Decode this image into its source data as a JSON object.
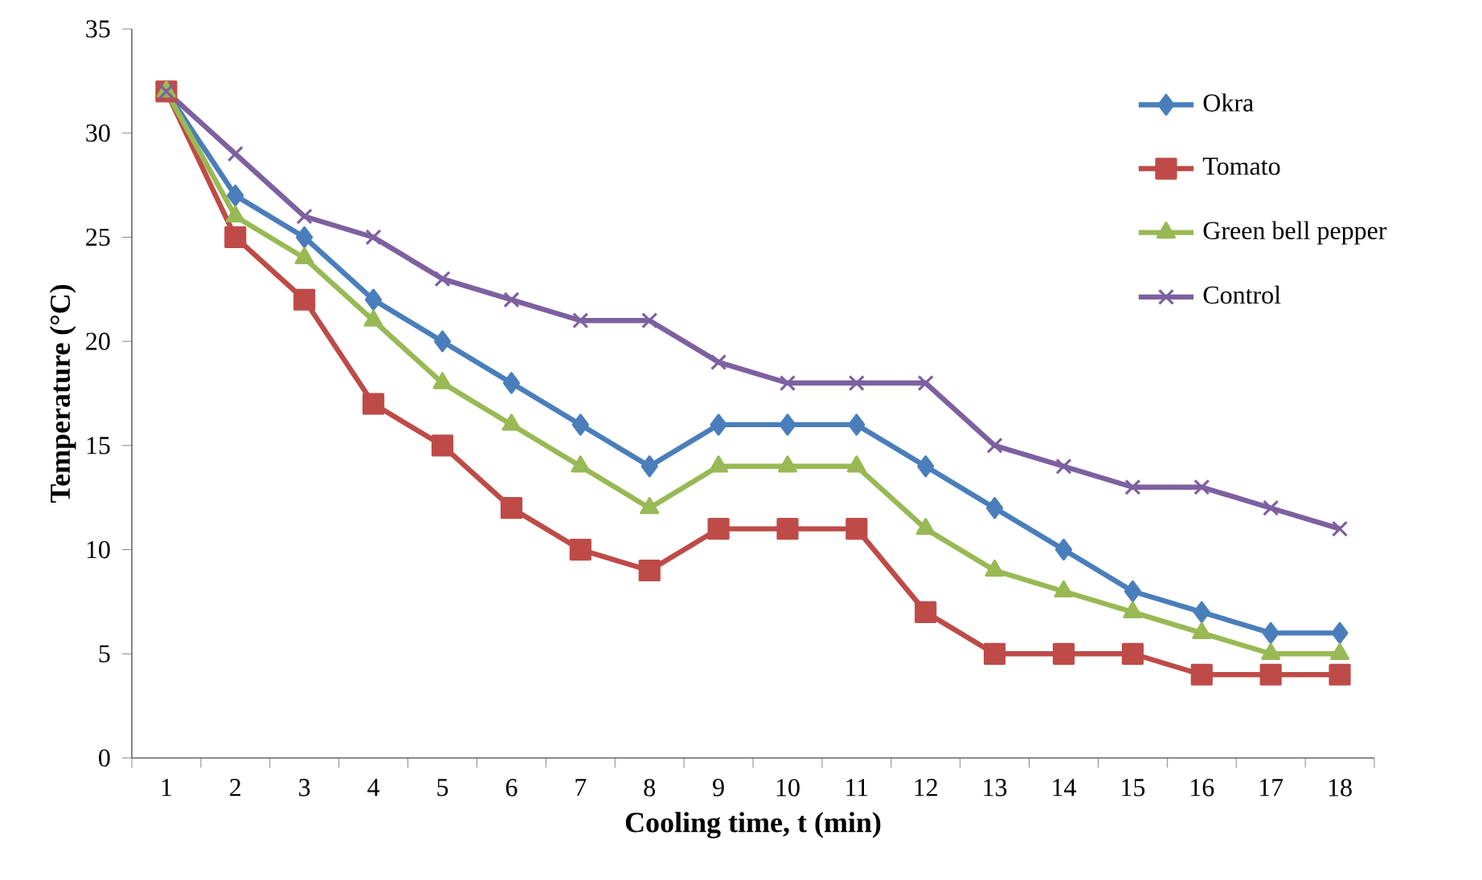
{
  "chart_data": {
    "type": "line",
    "xlabel": "Cooling time, t (min)",
    "ylabel": "Temperature (°C)",
    "categories": [
      "1",
      "2",
      "3",
      "4",
      "5",
      "6",
      "7",
      "8",
      "9",
      "10",
      "11",
      "12",
      "13",
      "14",
      "15",
      "16",
      "17",
      "18"
    ],
    "series": [
      {
        "name": "Okra",
        "color": "#4a7ebb",
        "marker": "diamond",
        "values": [
          32,
          27,
          25,
          22,
          20,
          18,
          16,
          14,
          16,
          16,
          16,
          14,
          12,
          10,
          8,
          7,
          6,
          6
        ]
      },
      {
        "name": "Tomato",
        "color": "#be4b48",
        "marker": "square",
        "values": [
          32,
          25,
          22,
          17,
          15,
          12,
          10,
          9,
          11,
          11,
          11,
          7,
          5,
          5,
          5,
          4,
          4,
          4
        ]
      },
      {
        "name": "Green bell pepper",
        "color": "#98b954",
        "marker": "triangle",
        "values": [
          32,
          26,
          24,
          21,
          18,
          16,
          14,
          12,
          14,
          14,
          14,
          11,
          9,
          8,
          7,
          6,
          5,
          5
        ]
      },
      {
        "name": "Control",
        "color": "#7d60a0",
        "marker": "cross",
        "values": [
          32,
          29,
          26,
          25,
          23,
          22,
          21,
          21,
          19,
          18,
          18,
          18,
          15,
          14,
          13,
          13,
          12,
          11
        ]
      }
    ],
    "ylim": [
      0,
      35
    ],
    "yticks": [
      0,
      5,
      10,
      15,
      20,
      25,
      30,
      35
    ],
    "grid": false,
    "legend": "top right",
    "line_style": "solid"
  }
}
